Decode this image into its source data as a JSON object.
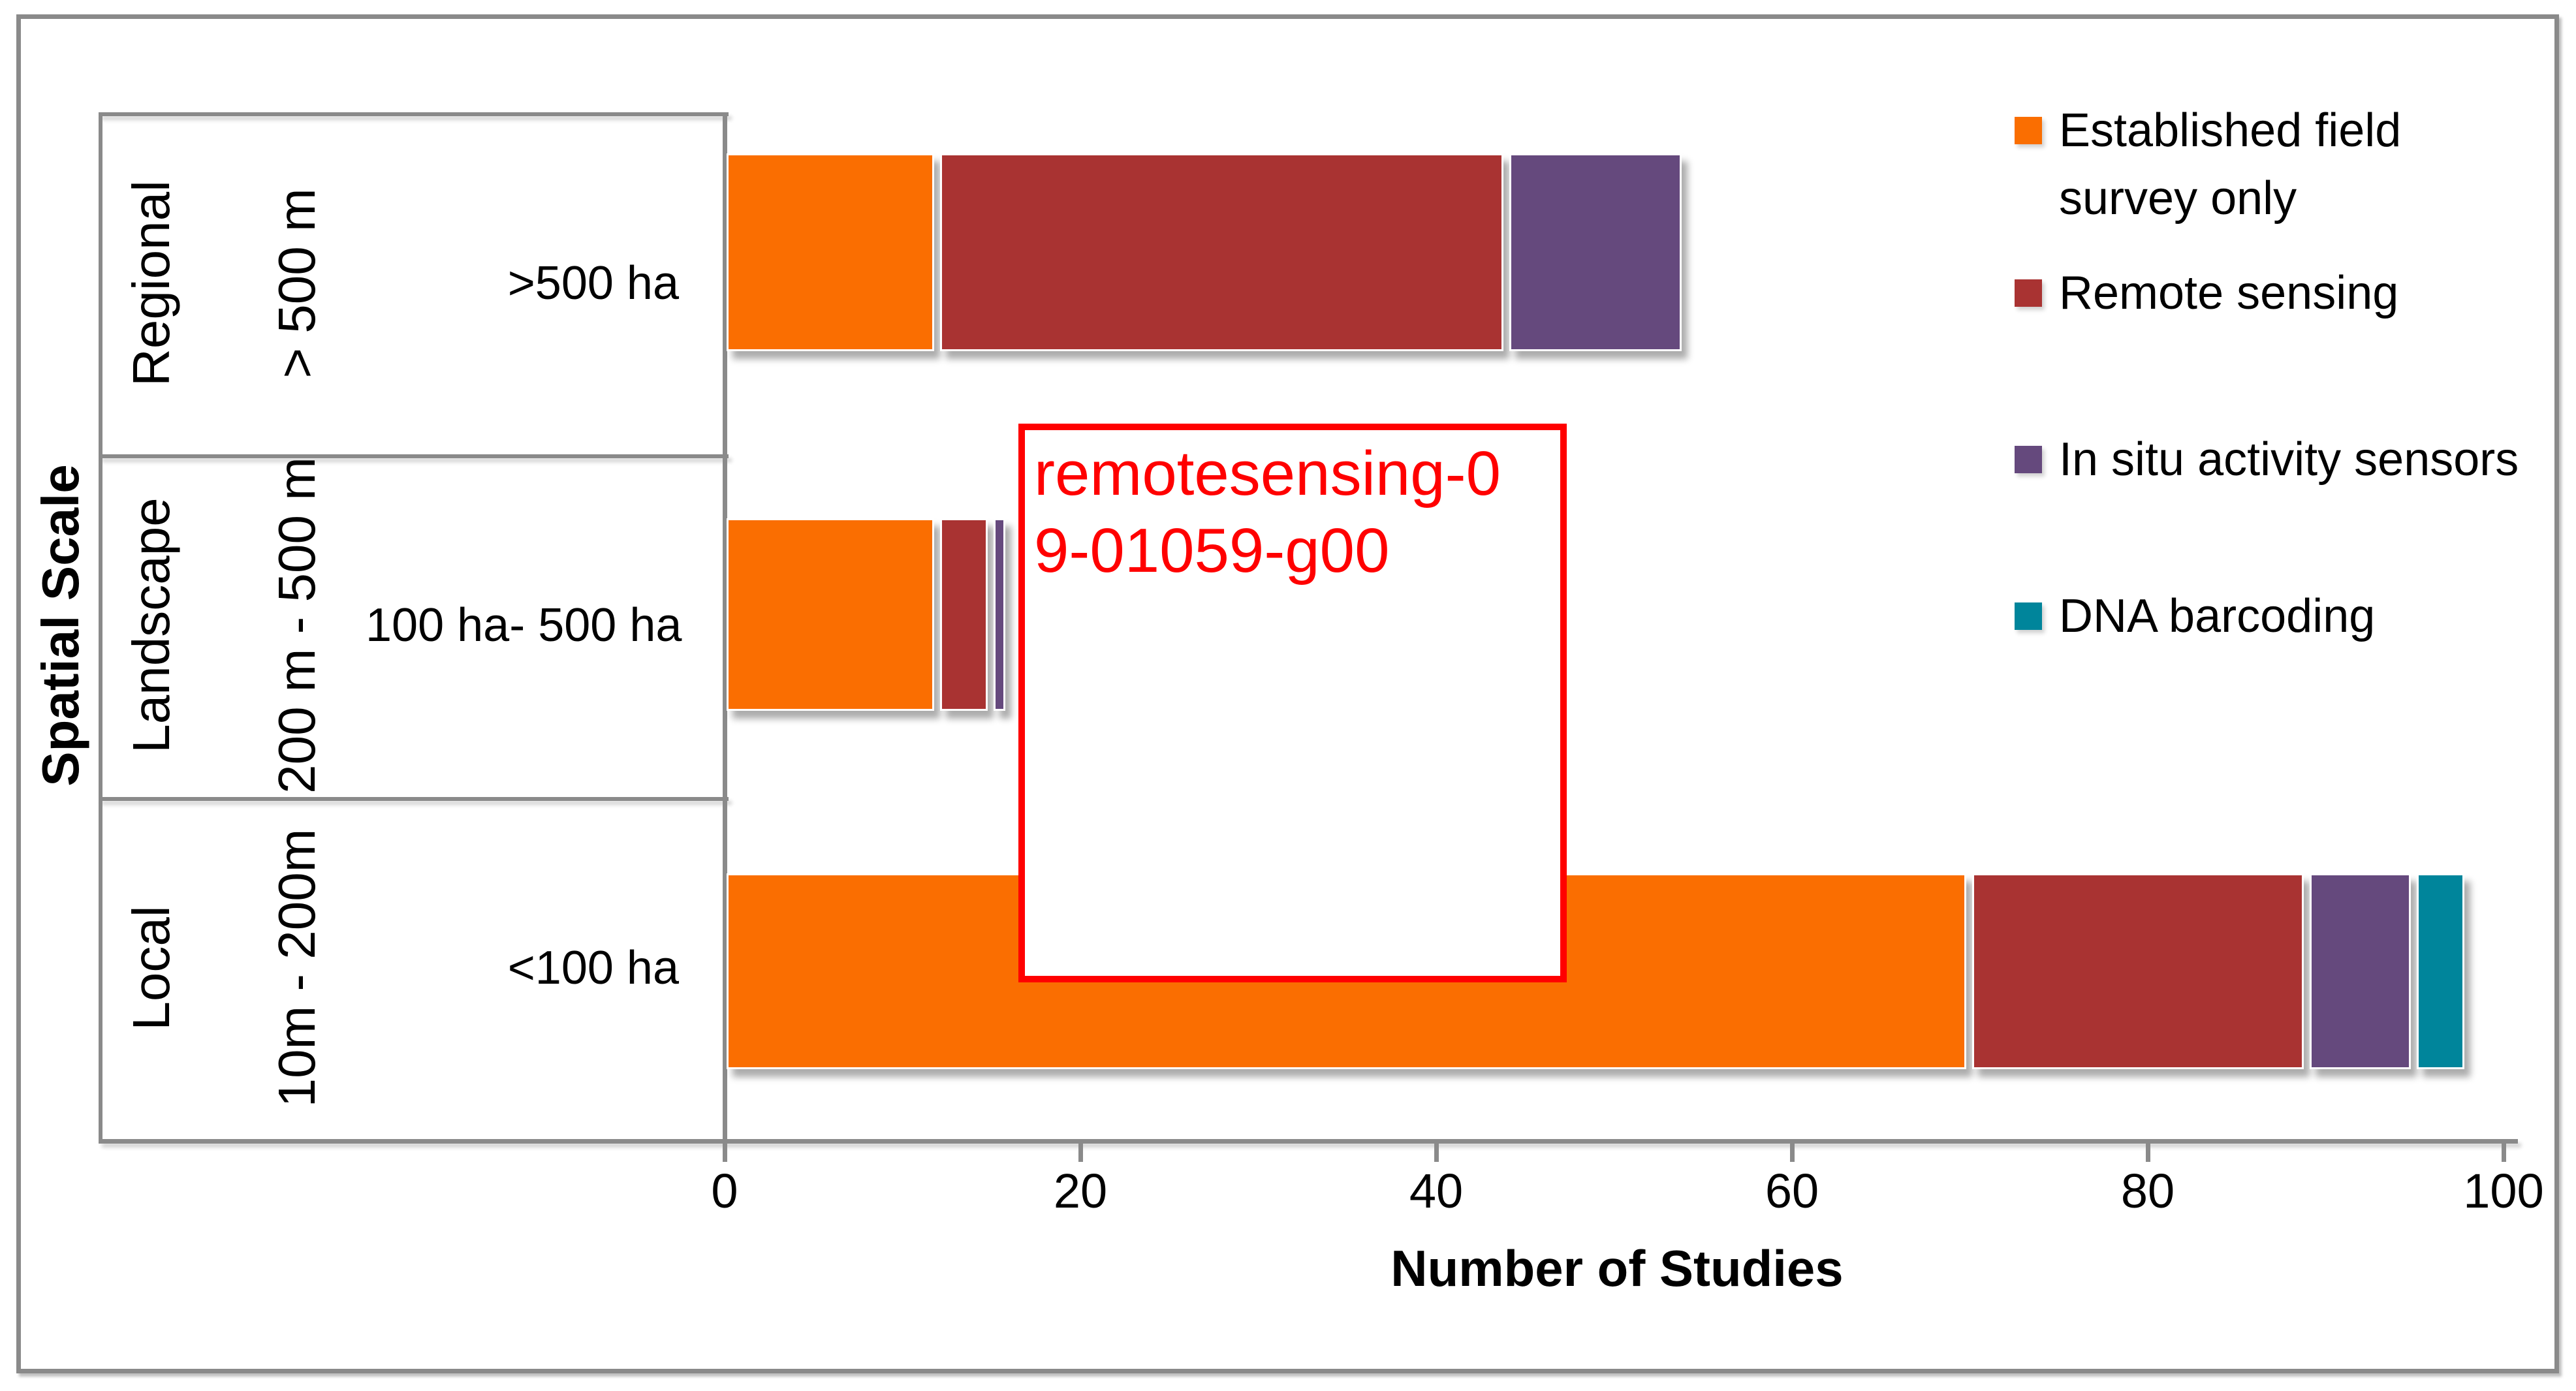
{
  "figure_kind": "stacked horizontal bar chart",
  "chart_data": {
    "type": "bar",
    "orientation": "horizontal",
    "stacked": true,
    "title": "",
    "xlabel": "Number of Studies",
    "ylabel": "Spatial Scale",
    "xlim": [
      0,
      100
    ],
    "xticks": [
      0,
      20,
      40,
      60,
      80,
      100
    ],
    "grid": false,
    "legend_position": "right",
    "rows": [
      {
        "scale_label": "Regional",
        "range_label": "> 500 m",
        "area_label": ">500 ha",
        "total": 54
      },
      {
        "scale_label": "Landscape",
        "range_label": "200 m - 500 m",
        "area_label": "100 ha- 500 ha",
        "total": 16
      },
      {
        "scale_label": "Local",
        "range_label": "10m - 200m",
        "area_label": "<100 ha",
        "total": 98
      }
    ],
    "series": [
      {
        "name": "Established field survey only",
        "color": "#FA6E01",
        "values": [
          12,
          12,
          70
        ]
      },
      {
        "name": "Remote sensing",
        "color": "#A93332",
        "values": [
          32,
          3,
          19
        ]
      },
      {
        "name": "In situ activity sensors",
        "color": "#65497D",
        "values": [
          10,
          1,
          6
        ]
      },
      {
        "name": "DNA barcoding",
        "color": "#00859B",
        "values": [
          0,
          0,
          3
        ]
      }
    ]
  },
  "legend": {
    "items": [
      {
        "label": "Established field\nsurvey only",
        "color": "#FA6E01"
      },
      {
        "label": "Remote sensing",
        "color": "#A93332"
      },
      {
        "label": "In situ activity sensors",
        "color": "#65497D"
      },
      {
        "label": "DNA barcoding",
        "color": "#00859B"
      }
    ]
  },
  "watermark": {
    "text": "remotesensing-09-01059-g00",
    "lines": [
      "remotesensing-0",
      "9-01059-g00"
    ],
    "color": "#FF0000"
  },
  "colors": {
    "axis_gray": "#8A8A8A",
    "text_black": "#000000",
    "background": "#FFFFFF"
  }
}
